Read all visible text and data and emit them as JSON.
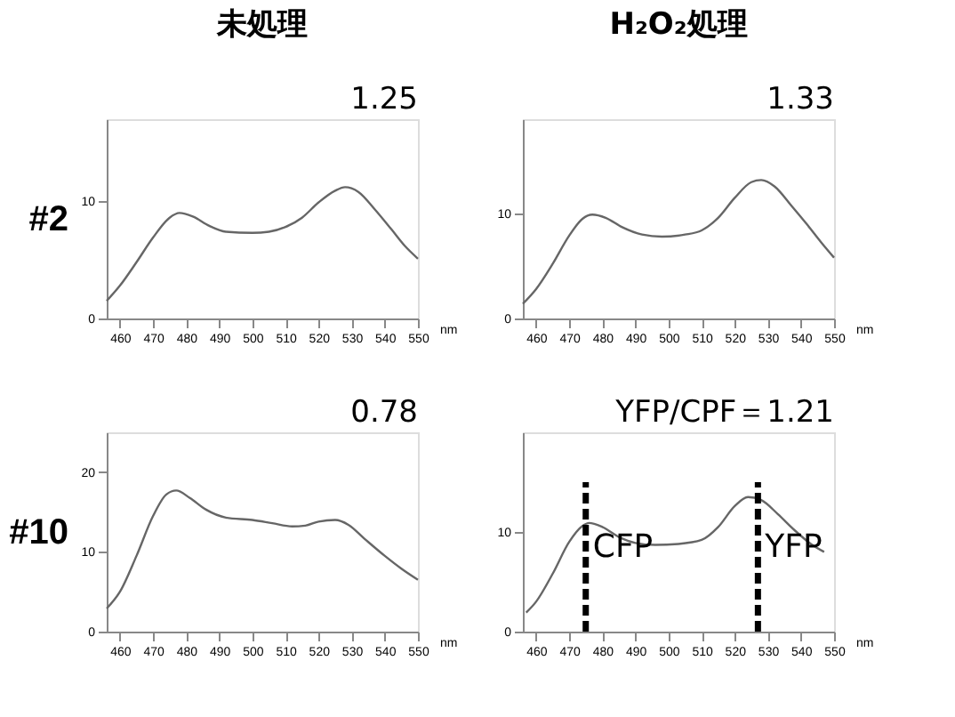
{
  "chart_data": [
    {
      "type": "line",
      "title": "未処理",
      "ylabel": "#2",
      "xlabel": "nm",
      "annotations": [
        "1.25"
      ],
      "xlim": [
        456,
        550
      ],
      "ylim": [
        0,
        17
      ],
      "xticks": [
        460,
        470,
        480,
        490,
        500,
        510,
        520,
        530,
        540,
        550
      ],
      "yticks": [
        0,
        10
      ],
      "x": [
        456,
        460,
        465,
        470,
        475,
        478,
        482,
        487,
        492,
        500,
        505,
        510,
        515,
        520,
        525,
        528,
        532,
        537,
        542,
        546,
        550
      ],
      "series": [
        {
          "color": "#666666",
          "values": [
            1.5,
            2.8,
            4.8,
            6.9,
            8.6,
            9.0,
            8.7,
            7.9,
            7.4,
            7.3,
            7.4,
            7.8,
            8.6,
            9.9,
            10.9,
            11.2,
            10.8,
            9.3,
            7.6,
            6.2,
            5.1
          ]
        }
      ]
    },
    {
      "type": "line",
      "title": "H₂O₂処理",
      "xlabel": "nm",
      "annotations": [
        "1.33"
      ],
      "xlim": [
        456,
        550
      ],
      "ylim": [
        0,
        19
      ],
      "xticks": [
        460,
        470,
        480,
        490,
        500,
        510,
        520,
        530,
        540,
        550
      ],
      "yticks": [
        0,
        10
      ],
      "x": [
        456,
        460,
        465,
        470,
        474,
        477,
        481,
        486,
        492,
        498,
        505,
        510,
        515,
        520,
        525,
        528,
        532,
        537,
        542,
        546,
        550
      ],
      "series": [
        {
          "color": "#666666",
          "values": [
            1.4,
            2.8,
            5.2,
            7.9,
            9.5,
            9.9,
            9.6,
            8.7,
            8.0,
            7.8,
            8.0,
            8.4,
            9.6,
            11.5,
            13.0,
            13.2,
            12.6,
            10.8,
            8.9,
            7.3,
            5.8
          ]
        }
      ]
    },
    {
      "type": "line",
      "ylabel": "#10",
      "xlabel": "nm",
      "annotations": [
        "0.78"
      ],
      "xlim": [
        456,
        550
      ],
      "ylim": [
        0,
        25
      ],
      "xticks": [
        460,
        470,
        480,
        490,
        500,
        510,
        520,
        530,
        540,
        550
      ],
      "yticks": [
        0,
        10,
        20
      ],
      "x": [
        456,
        460,
        465,
        470,
        474,
        477,
        481,
        486,
        492,
        500,
        506,
        512,
        516,
        520,
        525,
        529,
        534,
        540,
        545,
        550
      ],
      "series": [
        {
          "color": "#666666",
          "values": [
            2.9,
            5.0,
            9.5,
            14.5,
            17.2,
            17.7,
            16.8,
            15.3,
            14.3,
            14.0,
            13.6,
            13.2,
            13.3,
            13.8,
            14.0,
            13.4,
            11.6,
            9.5,
            7.9,
            6.5
          ]
        }
      ]
    },
    {
      "type": "line",
      "xlabel": "nm",
      "annotations": [
        "YFP/CPF＝1.21"
      ],
      "xlim": [
        456,
        550
      ],
      "ylim": [
        0,
        20
      ],
      "xticks": [
        460,
        470,
        480,
        490,
        500,
        510,
        520,
        530,
        540,
        550
      ],
      "yticks": [
        0,
        10
      ],
      "x": [
        457,
        460,
        465,
        470,
        474,
        476,
        480,
        485,
        490,
        496,
        503,
        510,
        515,
        520,
        524,
        528,
        533,
        538,
        543,
        547
      ],
      "series": [
        {
          "color": "#666666",
          "values": [
            1.9,
            3.0,
            5.8,
            9.0,
            10.6,
            10.9,
            10.5,
            9.5,
            8.9,
            8.7,
            8.8,
            9.2,
            10.5,
            12.6,
            13.5,
            13.2,
            11.8,
            10.2,
            8.8,
            8.0
          ]
        }
      ],
      "ref_lines": [
        {
          "axis": "x",
          "value": 475,
          "label": "CFP",
          "color": "#000000",
          "line_style": "dashed"
        },
        {
          "axis": "x",
          "value": 527,
          "label": "YFP",
          "color": "#000000",
          "line_style": "dashed"
        }
      ]
    }
  ]
}
